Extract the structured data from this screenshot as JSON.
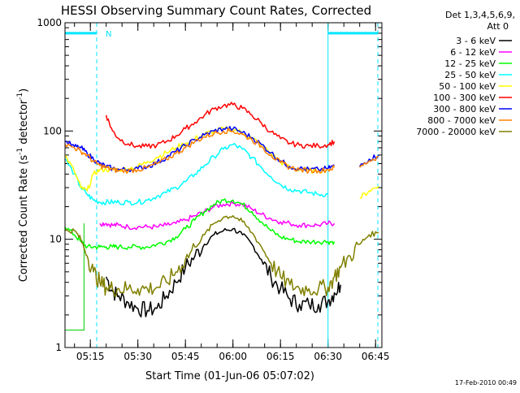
{
  "chart_data": {
    "type": "line",
    "title": "HESSI Observing Summary Count Rates, Corrected",
    "xlabel": "Start Time (01-Jun-06 05:07:02)",
    "ylabel_main": "Corrected Count Rate (s",
    "ylabel_sup1": "-1",
    "ylabel_mid": " detector",
    "ylabel_sup2": "-1",
    "ylabel_end": ")",
    "ylog": true,
    "ylim": [
      1,
      1000
    ],
    "xlim_minutes": [
      0,
      100
    ],
    "legend_position": "right",
    "legend_header": [
      "Det 1,3,4,5,6,9,",
      "Att 0"
    ],
    "y_ticks": [
      {
        "value": 1,
        "label": "1"
      },
      {
        "value": 10,
        "label": "10"
      },
      {
        "value": 100,
        "label": "100"
      },
      {
        "value": 1000,
        "label": "1000"
      }
    ],
    "x_ticks": [
      {
        "value": 8,
        "label": "05:15"
      },
      {
        "value": 23,
        "label": "05:30"
      },
      {
        "value": 38,
        "label": "05:45"
      },
      {
        "value": 53,
        "label": "06:00"
      },
      {
        "value": 68,
        "label": "06:15"
      },
      {
        "value": 83,
        "label": "06:30"
      },
      {
        "value": 98,
        "label": "06:45"
      }
    ],
    "saa_marker": "N",
    "timestamp": "17-Feb-2010 00:49",
    "night_band": {
      "start": 10,
      "end": 83
    },
    "x": [
      0,
      3,
      5,
      7,
      9,
      11,
      13,
      15,
      17,
      20,
      23,
      26,
      29,
      32,
      35,
      38,
      41,
      44,
      47,
      50,
      53,
      56,
      59,
      62,
      65,
      68,
      71,
      74,
      77,
      80,
      83,
      85,
      87,
      90,
      93,
      96,
      99
    ],
    "series": [
      {
        "name": "3 - 6 keV",
        "color": "#000000",
        "values": [
          null,
          null,
          null,
          null,
          null,
          null,
          4.5,
          3.3,
          3.0,
          2.6,
          2.3,
          2.2,
          2.3,
          3.0,
          4.0,
          5.5,
          7.0,
          9.0,
          11.0,
          12.0,
          12.5,
          11.0,
          9.0,
          6.5,
          4.5,
          3.5,
          2.8,
          2.5,
          2.5,
          2.5,
          2.7,
          3.2,
          3.8,
          null,
          null,
          null,
          null
        ]
      },
      {
        "name": "6 - 12 keV",
        "color": "#ff00ff",
        "values": [
          null,
          null,
          null,
          null,
          null,
          14.0,
          14.0,
          13.5,
          13.5,
          13.0,
          13.0,
          13.0,
          13.0,
          13.5,
          14.0,
          15.0,
          16.5,
          18.0,
          20.0,
          21.0,
          21.5,
          21.0,
          19.0,
          17.0,
          15.5,
          14.5,
          14.0,
          13.5,
          13.5,
          13.5,
          14.0,
          14.0,
          null,
          null,
          null,
          null,
          null
        ]
      },
      {
        "name": "12 - 25 keV",
        "color": "#00ff00",
        "values": [
          13,
          11,
          9.5,
          8.5,
          8.5,
          8.5,
          8.5,
          8.5,
          8.5,
          8.5,
          8.5,
          8.5,
          9.0,
          9.5,
          10.5,
          12.5,
          15.0,
          18.0,
          21.0,
          23.0,
          23.0,
          21.0,
          18.0,
          14.5,
          12.0,
          10.5,
          10.0,
          9.5,
          9.5,
          9.5,
          9.5,
          9.5,
          null,
          null,
          null,
          null,
          null
        ]
      },
      {
        "name": "25 - 50 keV",
        "color": "#00ffff",
        "values": [
          55,
          40,
          30,
          26,
          23,
          22,
          22,
          22,
          22,
          22,
          22,
          23,
          25,
          27,
          30,
          34,
          40,
          48,
          58,
          68,
          75,
          68,
          57,
          46,
          38,
          32,
          29,
          28,
          27,
          26,
          26,
          null,
          null,
          null,
          null,
          null,
          null
        ]
      },
      {
        "name": "50 - 100 keV",
        "color": "#ffff00",
        "values": [
          60,
          42,
          30,
          28,
          40,
          44,
          44,
          44,
          44,
          45,
          47,
          52,
          57,
          63,
          70,
          77,
          85,
          93,
          100,
          104,
          105,
          96,
          86,
          74,
          62,
          52,
          46,
          44,
          43,
          43,
          44,
          null,
          null,
          null,
          24,
          28,
          31
        ]
      },
      {
        "name": "100 - 300 keV",
        "color": "#ff0000",
        "values": [
          null,
          null,
          null,
          null,
          null,
          null,
          140,
          100,
          85,
          76,
          72,
          72,
          74,
          80,
          90,
          105,
          120,
          140,
          160,
          172,
          175,
          162,
          140,
          118,
          98,
          85,
          77,
          74,
          73,
          73,
          75,
          80,
          null,
          null,
          null,
          null,
          null
        ]
      },
      {
        "name": "300 - 800 keV",
        "color": "#0000ff",
        "values": [
          80,
          72,
          70,
          62,
          55,
          50,
          47,
          45,
          44,
          44,
          45,
          47,
          51,
          57,
          65,
          73,
          83,
          92,
          100,
          105,
          105,
          97,
          87,
          75,
          63,
          53,
          47,
          45,
          44,
          44,
          45,
          48,
          null,
          null,
          47,
          55,
          60
        ]
      },
      {
        "name": "800 - 7000 keV",
        "color": "#ff8000",
        "values": [
          75,
          70,
          65,
          60,
          52,
          48,
          46,
          44,
          43,
          43,
          44,
          46,
          50,
          55,
          62,
          70,
          80,
          88,
          95,
          100,
          100,
          93,
          83,
          72,
          60,
          51,
          46,
          44,
          43,
          43,
          44,
          46,
          null,
          null,
          46,
          53,
          58
        ]
      },
      {
        "name": "7000 - 20000 keV",
        "color": "#808000",
        "values": [
          12,
          12,
          10,
          7,
          5,
          4,
          3.6,
          3.5,
          3.5,
          3.5,
          3.5,
          3.5,
          3.6,
          4.0,
          5.0,
          6.5,
          8.5,
          11.0,
          14.0,
          16.0,
          16.5,
          14.5,
          11.5,
          8.5,
          6.0,
          4.5,
          3.8,
          3.5,
          3.5,
          3.5,
          3.6,
          4.5,
          5.5,
          7.0,
          9.0,
          11.0,
          11.5
        ]
      }
    ]
  }
}
